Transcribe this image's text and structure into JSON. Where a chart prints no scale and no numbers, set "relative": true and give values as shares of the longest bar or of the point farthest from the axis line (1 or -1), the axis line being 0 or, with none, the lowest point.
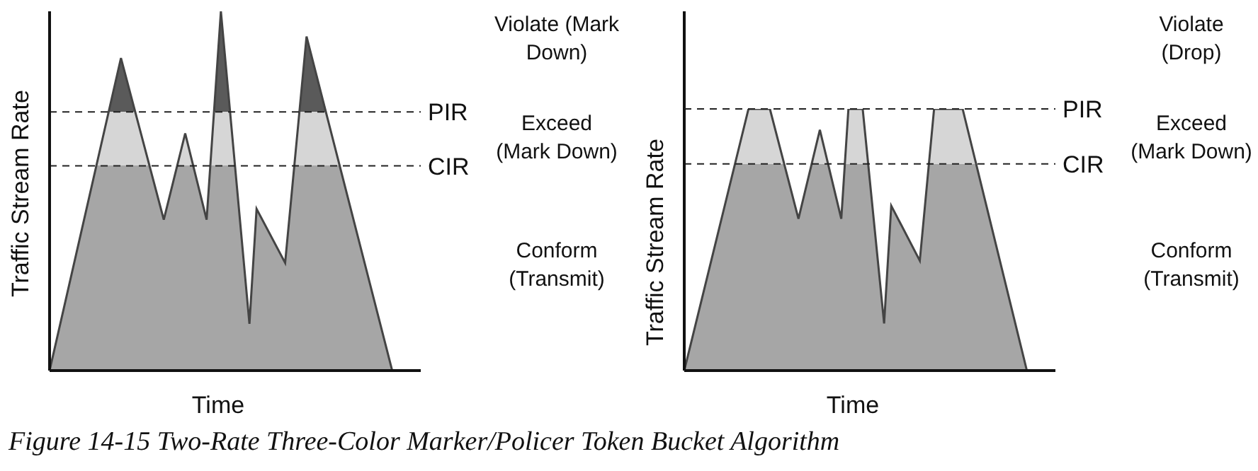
{
  "chart_data": [
    {
      "type": "area",
      "relative": true,
      "title": "Figure 14-15 Two-Rate Three-Color Marker/Policer Token Bucket Algorithm",
      "xlabel": "Time",
      "ylabel": "Traffic Stream Rate",
      "categories": [
        null,
        null,
        null,
        null,
        null,
        null,
        null,
        null,
        null,
        null,
        null,
        null,
        null,
        null,
        null,
        null,
        null,
        null,
        null,
        null,
        null,
        null,
        null,
        null,
        null,
        null,
        null,
        null,
        null,
        null,
        null,
        null,
        null,
        null,
        null,
        null,
        null,
        null,
        null,
        null,
        null,
        null,
        null,
        null,
        null,
        null,
        null,
        null,
        null,
        null,
        null,
        null,
        null
      ],
      "series": [
        {
          "color": "#a6a6a6",
          "values": [
            0,
            null,
            null,
            null,
            null,
            null,
            null,
            null,
            null,
            null,
            0.87,
            null,
            null,
            null,
            null,
            null,
            0.42,
            null,
            null,
            0.66,
            null,
            null,
            0.42,
            null,
            1,
            null,
            null,
            null,
            0.13,
            0.45,
            null,
            null,
            null,
            0.3,
            null,
            null,
            0.93,
            null,
            null,
            null,
            null,
            null,
            null,
            null,
            null,
            null,
            null,
            null,
            0,
            null,
            null,
            null,
            null
          ]
        }
      ],
      "ref_lines": [
        {
          "axis": "y",
          "value": 0.72,
          "label": "PIR",
          "line_style": "dashed"
        },
        {
          "axis": "y",
          "value": 0.57,
          "label": "CIR",
          "line_style": "dashed"
        }
      ],
      "annotations": [
        "Violate (Mark Down)",
        "Exceed (Mark Down)",
        "Conform (Transmit)"
      ]
    },
    {
      "type": "area",
      "relative": true,
      "xlabel": "Time",
      "ylabel": "Traffic Stream Rate",
      "categories": [
        null,
        null,
        null,
        null,
        null,
        null,
        null,
        null,
        null,
        null,
        null,
        null,
        null,
        null,
        null,
        null,
        null,
        null,
        null,
        null,
        null,
        null,
        null,
        null,
        null,
        null,
        null,
        null,
        null,
        null,
        null,
        null,
        null,
        null,
        null,
        null,
        null,
        null,
        null,
        null,
        null,
        null,
        null,
        null,
        null,
        null,
        null,
        null,
        null,
        null,
        null,
        null,
        null
      ],
      "series": [
        {
          "color": "#a6a6a6",
          "values": [
            0,
            null,
            null,
            null,
            null,
            null,
            null,
            null,
            null,
            1,
            null,
            null,
            1,
            null,
            null,
            null,
            0.58,
            null,
            null,
            0.92,
            null,
            null,
            0.58,
            1,
            null,
            1,
            null,
            null,
            0.18,
            0.63,
            null,
            null,
            null,
            0.42,
            null,
            1,
            null,
            null,
            null,
            1,
            null,
            null,
            null,
            null,
            null,
            null,
            null,
            null,
            0,
            null,
            null,
            null,
            null
          ]
        }
      ],
      "ref_lines": [
        {
          "axis": "y",
          "value": 1,
          "label": "PIR",
          "line_style": "dashed"
        },
        {
          "axis": "y",
          "value": 0.79,
          "label": "CIR",
          "line_style": "dashed"
        }
      ],
      "annotations": [
        "Violate (Drop)",
        "Exceed (Mark Down)",
        "Conform (Transmit)"
      ]
    }
  ]
}
